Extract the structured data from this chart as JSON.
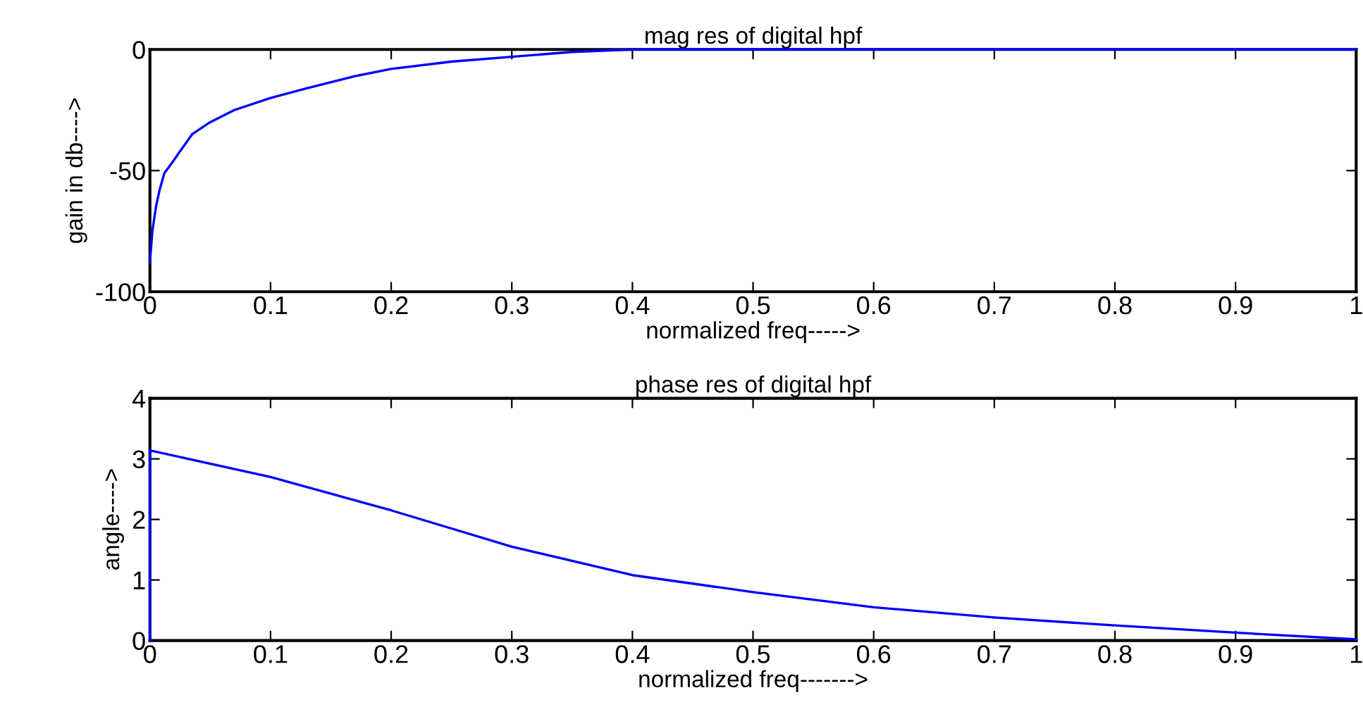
{
  "chart_data": [
    {
      "type": "line",
      "title": "mag res of digital hpf",
      "xlabel": "normalized freq----->",
      "ylabel": "gain in db---->",
      "xlim": [
        0,
        1
      ],
      "ylim": [
        -100,
        0
      ],
      "xticks": [
        0,
        0.1,
        0.2,
        0.3,
        0.4,
        0.5,
        0.6,
        0.7,
        0.8,
        0.9,
        1
      ],
      "yticks": [
        -100,
        -50,
        0
      ],
      "grid": false,
      "legend": false,
      "series": [
        {
          "color": "#0000ff",
          "x": [
            0,
            0.002,
            0.005,
            0.008,
            0.012,
            0.018,
            0.025,
            0.035,
            0.05,
            0.07,
            0.1,
            0.13,
            0.17,
            0.2,
            0.25,
            0.3,
            0.35,
            0.4,
            0.5,
            0.6,
            0.7,
            0.8,
            0.9,
            1
          ],
          "values": [
            -88,
            -75,
            -65,
            -58,
            -51,
            -47,
            -42,
            -35,
            -30,
            -25,
            -20,
            -16,
            -11,
            -8,
            -5,
            -3,
            -1,
            0,
            0,
            0,
            0,
            0,
            0,
            0
          ]
        }
      ]
    },
    {
      "type": "line",
      "title": "phase res of digital hpf",
      "xlabel": "normalized freq------->",
      "ylabel": "angle---->",
      "xlim": [
        0,
        1
      ],
      "ylim": [
        0,
        4
      ],
      "xticks": [
        0,
        0.1,
        0.2,
        0.3,
        0.4,
        0.5,
        0.6,
        0.7,
        0.8,
        0.9,
        1
      ],
      "yticks": [
        0,
        1,
        2,
        3,
        4
      ],
      "grid": false,
      "legend": false,
      "series": [
        {
          "color": "#0000ff",
          "x": [
            0,
            0,
            0.1,
            0.2,
            0.3,
            0.4,
            0.5,
            0.6,
            0.7,
            0.8,
            0.9,
            1
          ],
          "values": [
            0,
            3.14,
            2.7,
            2.15,
            1.55,
            1.08,
            0.8,
            0.55,
            0.38,
            0.25,
            0.13,
            0.02
          ]
        }
      ]
    }
  ]
}
